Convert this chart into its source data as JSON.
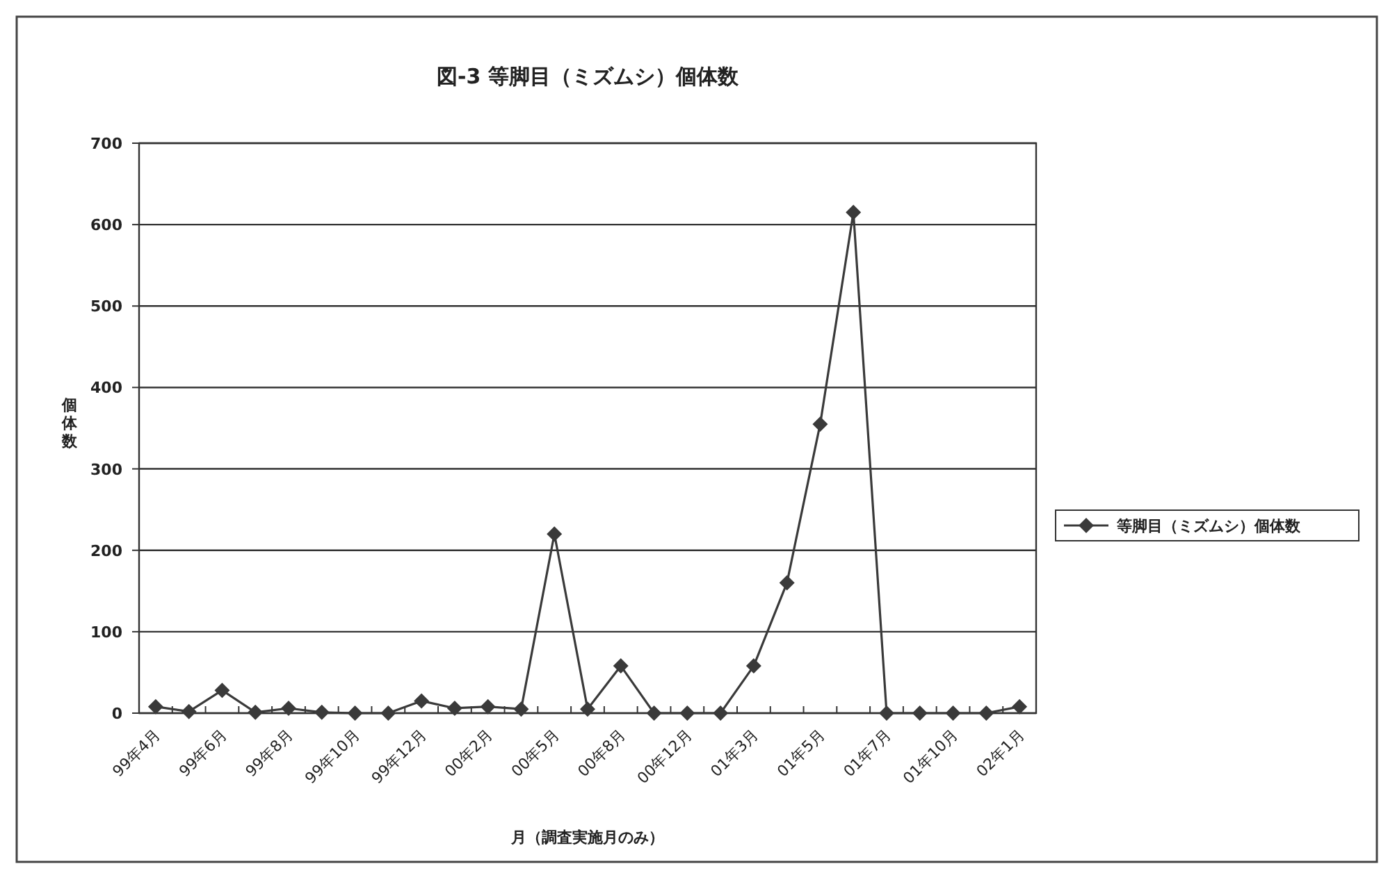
{
  "chart_data": {
    "type": "line",
    "title": "図-3 等脚目（ミズムシ）個体数",
    "xlabel": "月（調査実施月のみ）",
    "ylabel": "個体数",
    "categories": [
      "99年4月",
      null,
      "99年6月",
      null,
      "99年8月",
      null,
      "99年10月",
      null,
      "99年12月",
      null,
      "00年2月",
      null,
      "00年5月",
      null,
      "00年8月",
      null,
      "00年12月",
      null,
      "01年3月",
      null,
      "01年5月",
      null,
      "01年7月",
      null,
      "01年10月",
      null,
      "02年1月"
    ],
    "series": [
      {
        "name": "等脚目（ミズムシ）個体数",
        "color": "#3a3a3a",
        "values": [
          8,
          2,
          28,
          1,
          6,
          1,
          0,
          0,
          15,
          6,
          8,
          5,
          220,
          5,
          58,
          0,
          0,
          0,
          58,
          160,
          355,
          615,
          0,
          0,
          0,
          0,
          8
        ]
      }
    ],
    "ylim": [
      0,
      700
    ],
    "yticks": [
      0,
      100,
      200,
      300,
      400,
      500,
      600,
      700
    ],
    "grid": "y",
    "legend": "right",
    "marker": "diamond",
    "line_style": "solid"
  }
}
